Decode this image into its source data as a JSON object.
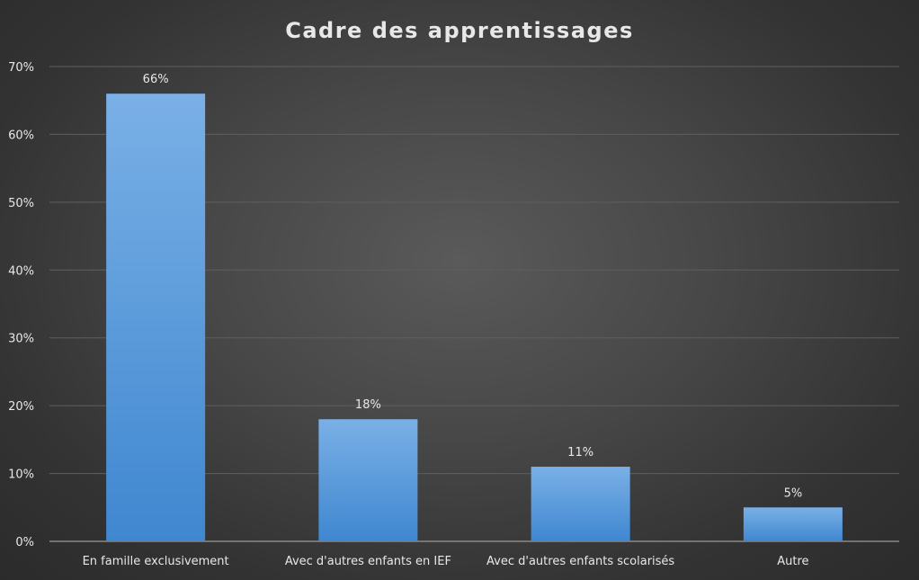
{
  "chart_data": {
    "type": "bar",
    "title": "Cadre des apprentissages",
    "xlabel": "",
    "ylabel": "",
    "categories": [
      "En famille exclusivement",
      "Avec d'autres enfants en IEF",
      "Avec d'autres enfants scolarisés",
      "Autre"
    ],
    "values": [
      66,
      18,
      11,
      5
    ],
    "data_labels": [
      "66%",
      "18%",
      "11%",
      "5%"
    ],
    "ylim": [
      0,
      70
    ],
    "yticks": [
      0,
      10,
      20,
      30,
      40,
      50,
      60,
      70
    ],
    "ytick_labels": [
      "0%",
      "10%",
      "20%",
      "30%",
      "40%",
      "50%",
      "60%",
      "70%"
    ],
    "grid": true,
    "legend": "none",
    "colors": {
      "bar_top": "#7ab0e6",
      "bar_bottom": "#3f87d0",
      "text": "#e8e8e8",
      "grid": "#5f5f5f",
      "axis": "#9a9a9a"
    }
  }
}
